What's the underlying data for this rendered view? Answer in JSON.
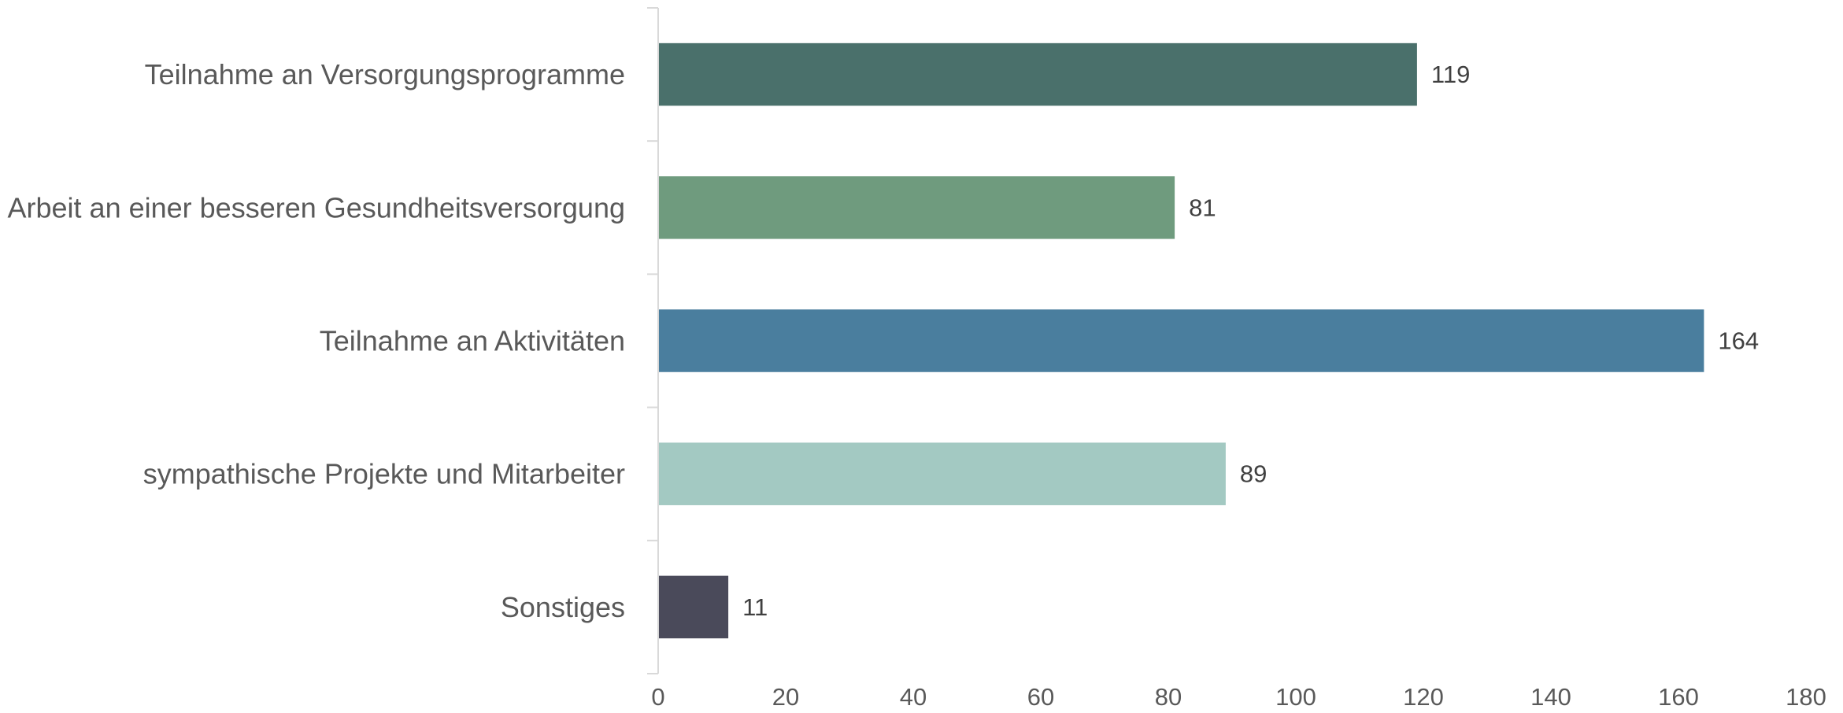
{
  "chart_data": {
    "type": "bar",
    "orientation": "horizontal",
    "title": "",
    "xlabel": "",
    "ylabel": "",
    "categories": [
      "Teilnahme an Versorgungsprogramme",
      "Arbeit an einer besseren Gesundheitsversorgung",
      "Teilnahme an Aktivitäten",
      "sympathische Projekte und Mitarbeiter",
      "Sonstiges"
    ],
    "values": [
      119,
      81,
      164,
      89,
      11
    ],
    "colors": [
      "#4a706b",
      "#6f9b7e",
      "#4a7e9e",
      "#a3c9c2",
      "#4a4a5a"
    ],
    "xlim": [
      0,
      180
    ],
    "ticks": [
      0,
      20,
      40,
      60,
      80,
      100,
      120,
      140,
      160,
      180
    ],
    "grid": false,
    "legend": "none",
    "data_labels": true
  }
}
